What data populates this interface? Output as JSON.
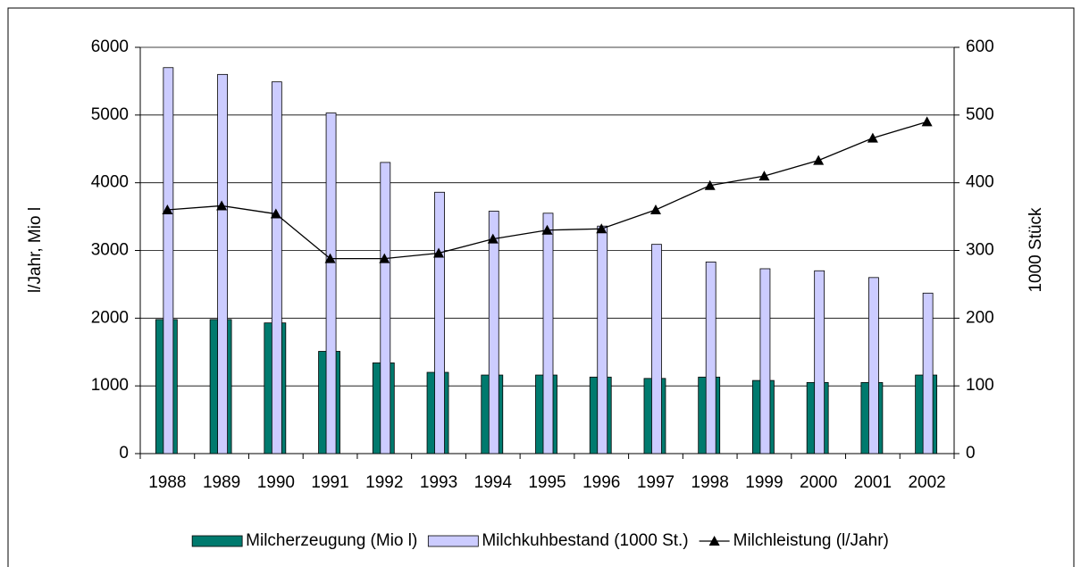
{
  "chart_data": {
    "type": "bar",
    "categories": [
      "1988",
      "1989",
      "1990",
      "1991",
      "1992",
      "1993",
      "1994",
      "1995",
      "1996",
      "1997",
      "1998",
      "1999",
      "2000",
      "2001",
      "2002"
    ],
    "y_label": "l/Jahr, Mio l",
    "y2_label": "1000 Stück",
    "ylim": [
      0,
      6000
    ],
    "yticks": [
      0,
      1000,
      2000,
      3000,
      4000,
      5000,
      6000
    ],
    "y2lim": [
      0,
      600
    ],
    "y2ticks": [
      0,
      100,
      200,
      300,
      400,
      500,
      600
    ],
    "grid": true,
    "legend": "bottom",
    "series": [
      {
        "name": "Milcherzeugung (Mio l)",
        "type": "bar",
        "color": "#007a6e",
        "values": [
          1980,
          1980,
          1930,
          1510,
          1340,
          1200,
          1160,
          1160,
          1130,
          1110,
          1130,
          1080,
          1050,
          1050,
          1160
        ]
      },
      {
        "name": "Milchkuhbestand (1000 St.)",
        "type": "bar",
        "axis": "y2",
        "color": "#ccccff",
        "values": [
          570,
          560,
          549,
          503,
          430,
          386,
          358,
          355,
          336,
          309,
          283,
          273,
          270,
          260,
          237
        ]
      },
      {
        "name": "Milchleistung (l/Jahr)",
        "type": "line",
        "color": "#000000",
        "values": [
          3600,
          3660,
          3540,
          2880,
          2880,
          2960,
          3170,
          3300,
          3320,
          3600,
          3960,
          4100,
          4330,
          4660,
          4900
        ]
      }
    ]
  }
}
